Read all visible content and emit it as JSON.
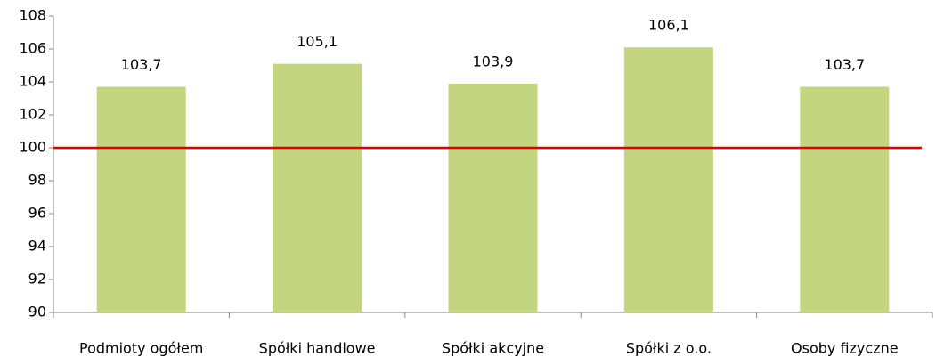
{
  "chart_data": {
    "type": "bar",
    "categories": [
      "Podmioty ogółem",
      "Spółki handlowe",
      "Spółki akcyjne",
      "Spółki z o.o.",
      "Osoby fizyczne"
    ],
    "values": [
      103.7,
      105.1,
      103.9,
      106.1,
      103.7
    ],
    "value_labels": [
      "103,7",
      "105,1",
      "103,9",
      "106,1",
      "103,7"
    ],
    "color": "#c3d67f",
    "ylim": [
      90,
      108
    ],
    "yticks": [
      90,
      92,
      94,
      96,
      98,
      100,
      102,
      104,
      106,
      108
    ],
    "grid": false,
    "reference_line": {
      "value": 100,
      "color": "#e00000"
    }
  }
}
